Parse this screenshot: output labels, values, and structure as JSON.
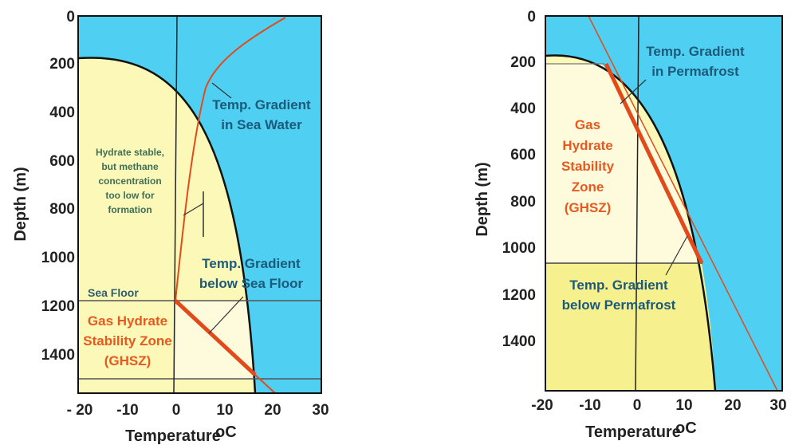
{
  "diagrams": [
    {
      "id": "marine",
      "y_axis_title": "Depth (m)",
      "x_axis_title": "Temperature",
      "x_axis_unit": "oC",
      "y_ticks": [
        "0",
        "200",
        "400",
        "600",
        "800",
        "1000",
        "1200",
        "1400"
      ],
      "x_ticks": [
        "- 20",
        "-10",
        "0",
        "10",
        "20",
        "30"
      ],
      "labels": {
        "gradient_water_1": "Temp. Gradient",
        "gradient_water_2": "in Sea Water",
        "hydrate_note_1": "Hydrate stable,",
        "hydrate_note_2": "but methane",
        "hydrate_note_3": "concentration",
        "hydrate_note_4": "too low for",
        "hydrate_note_5": "formation",
        "gradient_floor_1": "Temp. Gradient",
        "gradient_floor_2": "below Sea Floor",
        "sea_floor": "Sea Floor",
        "ghsz_1": "Gas Hydrate",
        "ghsz_2": "Stability Zone",
        "ghsz_3": "(GHSZ)"
      }
    },
    {
      "id": "permafrost",
      "y_axis_title": "Depth (m)",
      "x_axis_title": "Temperature",
      "x_axis_unit": "oC",
      "y_ticks": [
        "0",
        "200",
        "400",
        "600",
        "800",
        "1000",
        "1200",
        "1400"
      ],
      "x_ticks": [
        "-20",
        "-10",
        "0",
        "10",
        "20",
        "30"
      ],
      "labels": {
        "gradient_perm_1": "Temp. Gradient",
        "gradient_perm_2": "in Permafrost",
        "ghsz_1": "Gas",
        "ghsz_2": "Hydrate",
        "ghsz_3": "Stability",
        "ghsz_4": "Zone",
        "ghsz_5": "(GHSZ)",
        "gradient_below_1": "Temp. Gradient",
        "gradient_below_2": "below Permafrost"
      }
    }
  ],
  "colors": {
    "water": "#4fd0f2",
    "stability_zone": "#fbf8b8",
    "ghsz_light": "#fdfbdc",
    "sediment_below": "#f6f08e",
    "gradient_line": "#e24a1c",
    "boundary": "#111111"
  }
}
